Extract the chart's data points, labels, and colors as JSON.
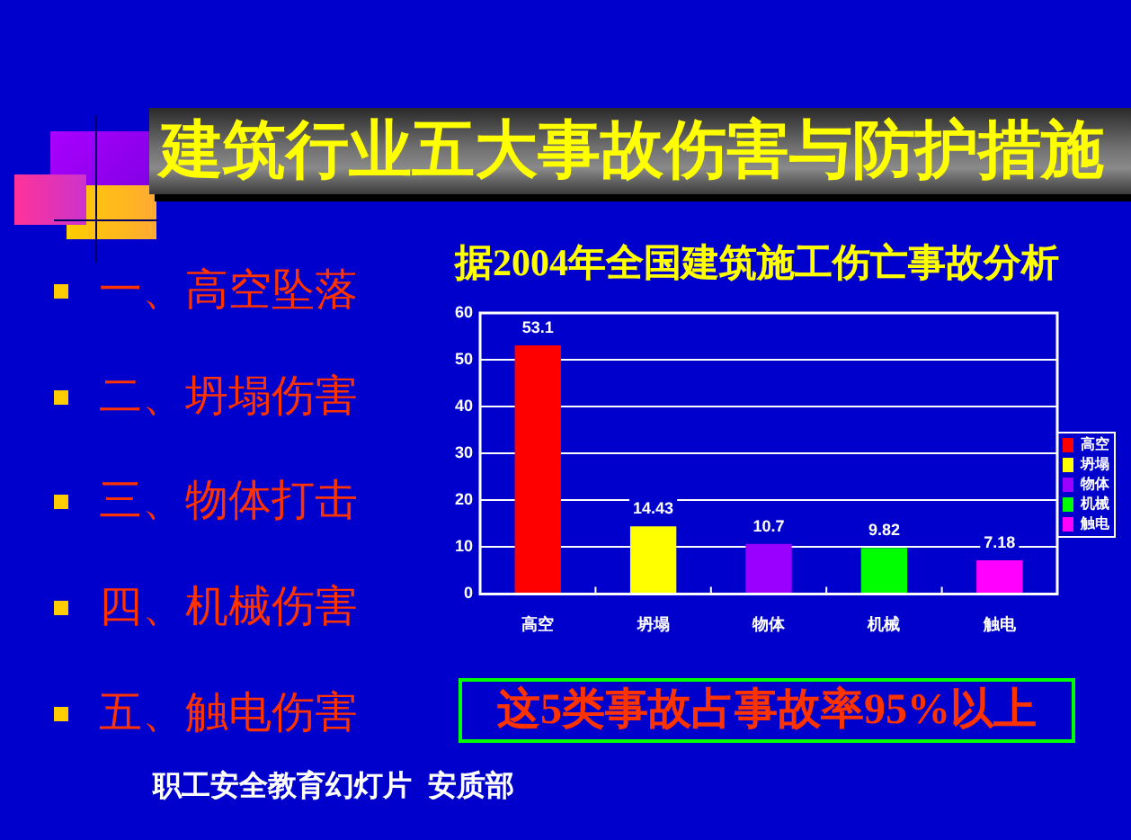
{
  "chart_data": {
    "type": "bar",
    "title": "建筑行业五大事故伤害与防护措施",
    "subtitle": "据2004年全国建筑施工伤亡事故分析",
    "categories": [
      "高空",
      "坍塌",
      "物体",
      "机械",
      "触电"
    ],
    "series": [
      {
        "name": "高空",
        "color": "#ff0000",
        "values": [
          53.1,
          null,
          null,
          null,
          null
        ]
      },
      {
        "name": "坍塌",
        "color": "#ffff00",
        "values": [
          null,
          14.43,
          null,
          null,
          null
        ]
      },
      {
        "name": "物体",
        "color": "#9900ff",
        "values": [
          null,
          null,
          10.7,
          null,
          null
        ]
      },
      {
        "name": "机械",
        "color": "#00ff00",
        "values": [
          null,
          null,
          null,
          9.82,
          null
        ]
      },
      {
        "name": "触电",
        "color": "#ff00ff",
        "values": [
          null,
          null,
          null,
          null,
          7.18
        ]
      }
    ],
    "ylim": [
      0,
      60
    ],
    "yticks": [
      0,
      10,
      20,
      30,
      40,
      50,
      60
    ],
    "grid": "y",
    "legend": "right",
    "data_labels": true,
    "annotations": [
      "一、高空坠落",
      "二、坍塌伤害",
      "三、物体打击",
      "四、机械伤害",
      "五、触电伤害",
      "这5类事故占事故率95%以上",
      "职工安全教育幻灯片  安质部"
    ]
  }
}
